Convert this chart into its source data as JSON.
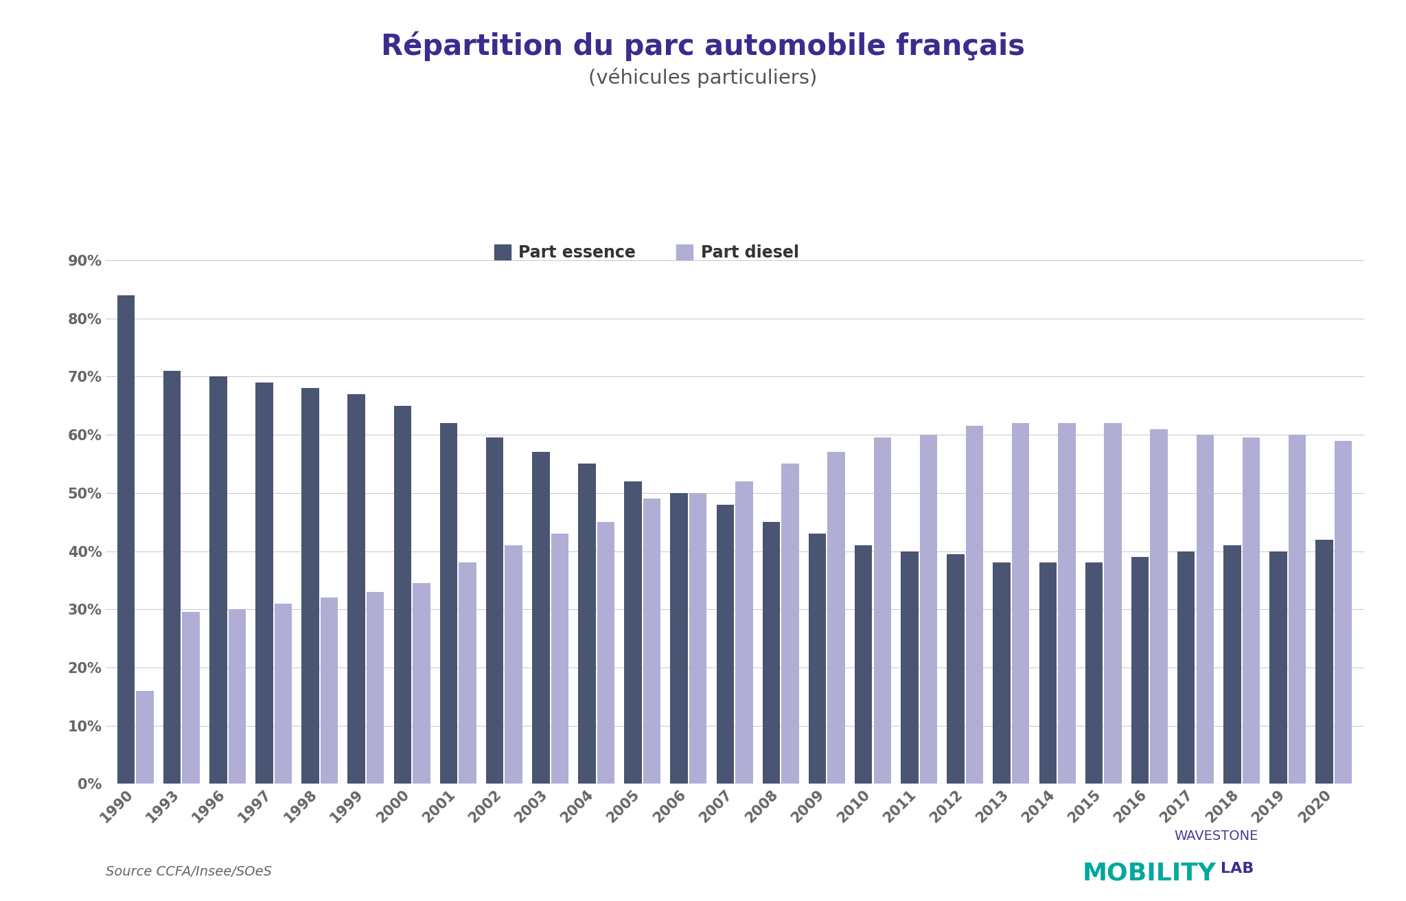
{
  "title_line1": "Répartition du parc automobile français",
  "title_line2": "(véhicules particuliers)",
  "years": [
    "1990",
    "1993",
    "1996",
    "1997",
    "1998",
    "1999",
    "2000",
    "2001",
    "2002",
    "2003",
    "2004",
    "2005",
    "2006",
    "2007",
    "2008",
    "2009",
    "2010",
    "2011",
    "2012",
    "2013",
    "2014",
    "2015",
    "2016",
    "2017",
    "2018",
    "2019",
    "2020"
  ],
  "essence": [
    84,
    71,
    70,
    69,
    68,
    67,
    65,
    62,
    59.5,
    57,
    55,
    52,
    50,
    48,
    45,
    43,
    41,
    40,
    39.5,
    38,
    38,
    38,
    39,
    40,
    41,
    40,
    42
  ],
  "diesel": [
    16,
    29.5,
    30,
    31,
    32,
    33,
    34.5,
    38,
    41,
    43,
    45,
    49,
    50,
    52,
    55,
    57,
    59.5,
    60,
    61.5,
    62,
    62,
    62,
    61,
    60,
    59.5,
    60,
    59
  ],
  "essence_color": "#4a5473",
  "diesel_color": "#b0aed4",
  "bg_color": "#ffffff",
  "title_color": "#3d2b8e",
  "subtitle_color": "#555555",
  "ylabel_ticks": [
    "0%",
    "10%",
    "20%",
    "30%",
    "40%",
    "50%",
    "60%",
    "70%",
    "80%",
    "90%"
  ],
  "legend_essence": "Part essence",
  "legend_diesel": "Part diesel",
  "source_text": "Source CCFA/Insee/SOeS",
  "wavestone_text": "WAVESTONE",
  "mobility_text": "MOBILITY",
  "lab_text": "LAB",
  "wavestone_color": "#4a3d8f",
  "mobility_color": "#00a89d",
  "lab_color": "#3d2b8e",
  "tick_color": "#666666",
  "grid_color": "#cccccc"
}
